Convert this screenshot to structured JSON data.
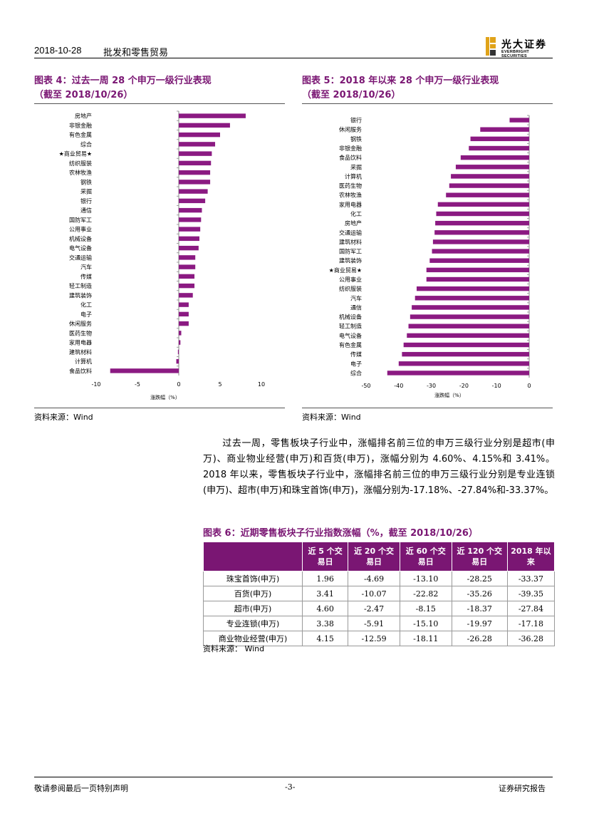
{
  "header": {
    "date": "2018-10-28",
    "sector": "批发和零售贸易",
    "logo_name": "光大证券",
    "logo_en": "EVERBRIGHT SECURITIES"
  },
  "fig4": {
    "title": "图表 4：过去一周 28 个申万一级行业表现",
    "subtitle": "（截至 2018/10/26）",
    "source": "资料来源：Wind"
  },
  "fig5": {
    "title": "图表 5：2018 年以来 28 个申万一级行业表现",
    "subtitle": "（截至 2018/10/26）",
    "source": "资料来源：Wind"
  },
  "chart_data": [
    {
      "type": "bar",
      "orientation": "horizontal",
      "categories": [
        "房地产",
        "非银金融",
        "有色金属",
        "综合",
        "★商业贸易★",
        "纺织服装",
        "农林牧渔",
        "钢铁",
        "采掘",
        "银行",
        "通信",
        "国防军工",
        "公用事业",
        "机械设备",
        "电气设备",
        "交通运输",
        "汽车",
        "传媒",
        "轻工制造",
        "建筑装饰",
        "化工",
        "电子",
        "休闲服务",
        "医药生物",
        "家用电器",
        "建筑材料",
        "计算机",
        "食品饮料"
      ],
      "values": [
        8.1,
        6.2,
        5.0,
        4.4,
        4.0,
        3.9,
        3.8,
        3.8,
        3.5,
        3.2,
        2.8,
        2.7,
        2.6,
        2.5,
        2.4,
        2.0,
        2.0,
        1.9,
        1.9,
        1.7,
        1.2,
        1.2,
        1.2,
        0.3,
        0.2,
        -0.1,
        -0.3,
        -8.3
      ],
      "xlabel": "涨跌幅（%）",
      "xlim": [
        -10,
        10
      ],
      "xticks": [
        -10,
        -5,
        0,
        5,
        10
      ],
      "color": "#8b1a82"
    },
    {
      "type": "bar",
      "orientation": "horizontal",
      "categories": [
        "银行",
        "休闲服务",
        "钢铁",
        "非银金融",
        "食品饮料",
        "采掘",
        "计算机",
        "医药生物",
        "农林牧渔",
        "家用电器",
        "化工",
        "房地产",
        "交通运输",
        "建筑材料",
        "国防军工",
        "建筑装饰",
        "★商业贸易★",
        "公用事业",
        "纺织服装",
        "汽车",
        "通信",
        "机械设备",
        "轻工制造",
        "电气设备",
        "有色金属",
        "传媒",
        "电子",
        "综合"
      ],
      "values": [
        -6,
        -15,
        -18,
        -18.5,
        -21,
        -22.5,
        -24,
        -24.5,
        -25.5,
        -28,
        -28.5,
        -28.8,
        -29,
        -29.5,
        -29.8,
        -30.5,
        -31.5,
        -31.5,
        -34.5,
        -35,
        -36,
        -36.5,
        -37,
        -37.5,
        -38.5,
        -39,
        -40,
        -43.5
      ],
      "xlabel": "涨跌幅（%）",
      "xlim": [
        -50,
        0
      ],
      "xticks": [
        -50,
        -40,
        -30,
        -20,
        -10,
        0
      ],
      "color": "#8b1a82"
    }
  ],
  "paragraph": "过去一周，零售板块子行业中，涨幅排名前三位的申万三级行业分别是超市(申万)、商业物业经营(申万)和百货(申万)，涨幅分别为 4.60%、4.15%和 3.41%。2018 年以来，零售板块子行业中，涨幅排名前三位的申万三级行业分别是专业连锁(申万)、超市(申万)和珠宝首饰(申万)，涨幅分别为-17.18%、-27.84%和-33.37%。",
  "fig6": {
    "title": "图表 6：近期零售板块子行业指数涨幅（%，截至 2018/10/26）",
    "columns": [
      "",
      "近 5 个交易日",
      "近 20 个交易日",
      "近 60 个交易日",
      "近 120 个交易日",
      "2018 年以来"
    ],
    "rows": [
      [
        "珠宝首饰(申万)",
        "1.96",
        "-4.69",
        "-13.10",
        "-28.25",
        "-33.37"
      ],
      [
        "百货(申万)",
        "3.41",
        "-10.07",
        "-22.82",
        "-35.26",
        "-39.35"
      ],
      [
        "超市(申万)",
        "4.60",
        "-2.47",
        "-8.15",
        "-18.37",
        "-27.84"
      ],
      [
        "专业连锁(申万)",
        "3.38",
        "-5.91",
        "-15.10",
        "-19.97",
        "-17.18"
      ],
      [
        "商业物业经营(申万)",
        "4.15",
        "-12.59",
        "-18.11",
        "-26.28",
        "-36.28"
      ]
    ],
    "source": "资料来源：  Wind"
  },
  "footer": {
    "left": "敬请参阅最后一页特别声明",
    "page": "-3-",
    "right": "证券研究报告"
  }
}
